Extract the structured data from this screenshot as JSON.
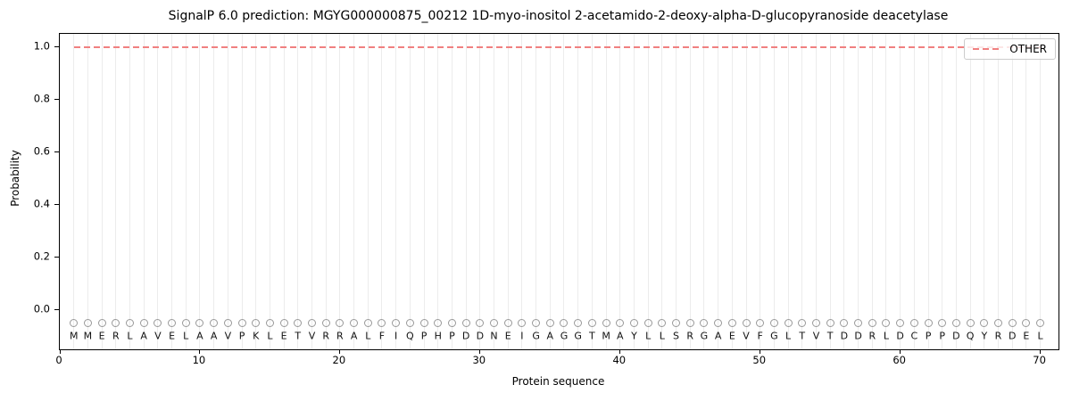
{
  "chart_data": {
    "type": "line",
    "title": "SignalP 6.0 prediction: MGYG000000875_00212 1D-myo-inositol 2-acetamido-2-deoxy-alpha-D-glucopyranoside deacetylase",
    "xlabel": "Protein sequence",
    "ylabel": "Probability",
    "xlim": [
      0,
      71.3
    ],
    "ylim": [
      -0.15,
      1.05
    ],
    "x_ticks": [
      "0",
      "10",
      "20",
      "30",
      "40",
      "50",
      "60",
      "70"
    ],
    "x_tick_values": [
      0,
      10,
      20,
      30,
      40,
      50,
      60,
      70
    ],
    "y_ticks": [
      "0.0",
      "0.2",
      "0.4",
      "0.6",
      "0.8",
      "1.0"
    ],
    "y_tick_values": [
      0.0,
      0.2,
      0.4,
      0.6,
      0.8,
      1.0
    ],
    "grid": "vertical gridline at each residue position, no horizontal gridlines",
    "legend": {
      "position": "upper right",
      "entries": [
        {
          "label": "OTHER",
          "color": "#f08080",
          "line_style": "dashed"
        }
      ]
    },
    "sequence": "MMERLAVELAAVPKLETVRRALFIQPHPDDNEIGAGGTMAYLLSRGAEVFGLTVTDDRLDCPPDQYRDEL",
    "sequence_positions_start": 1,
    "marker_y": -0.05,
    "letter_y": -0.1,
    "series": [
      {
        "name": "OTHER",
        "color": "#f08080",
        "line_style": "dashed",
        "x_start": 1,
        "x_end": 70,
        "values": [
          1.0,
          1.0,
          1.0,
          1.0,
          1.0,
          1.0,
          1.0,
          1.0,
          1.0,
          1.0,
          1.0,
          1.0,
          1.0,
          1.0,
          1.0,
          1.0,
          1.0,
          1.0,
          1.0,
          1.0,
          1.0,
          1.0,
          1.0,
          1.0,
          1.0,
          1.0,
          1.0,
          1.0,
          1.0,
          1.0,
          1.0,
          1.0,
          1.0,
          1.0,
          1.0,
          1.0,
          1.0,
          1.0,
          1.0,
          1.0,
          1.0,
          1.0,
          1.0,
          1.0,
          1.0,
          1.0,
          1.0,
          1.0,
          1.0,
          1.0,
          1.0,
          1.0,
          1.0,
          1.0,
          1.0,
          1.0,
          1.0,
          1.0,
          1.0,
          1.0,
          1.0,
          1.0,
          1.0,
          1.0,
          1.0,
          1.0,
          1.0,
          1.0,
          1.0,
          1.0
        ]
      }
    ],
    "colors": {
      "other_line": "#f08080",
      "residue_marker": "#999999"
    }
  }
}
